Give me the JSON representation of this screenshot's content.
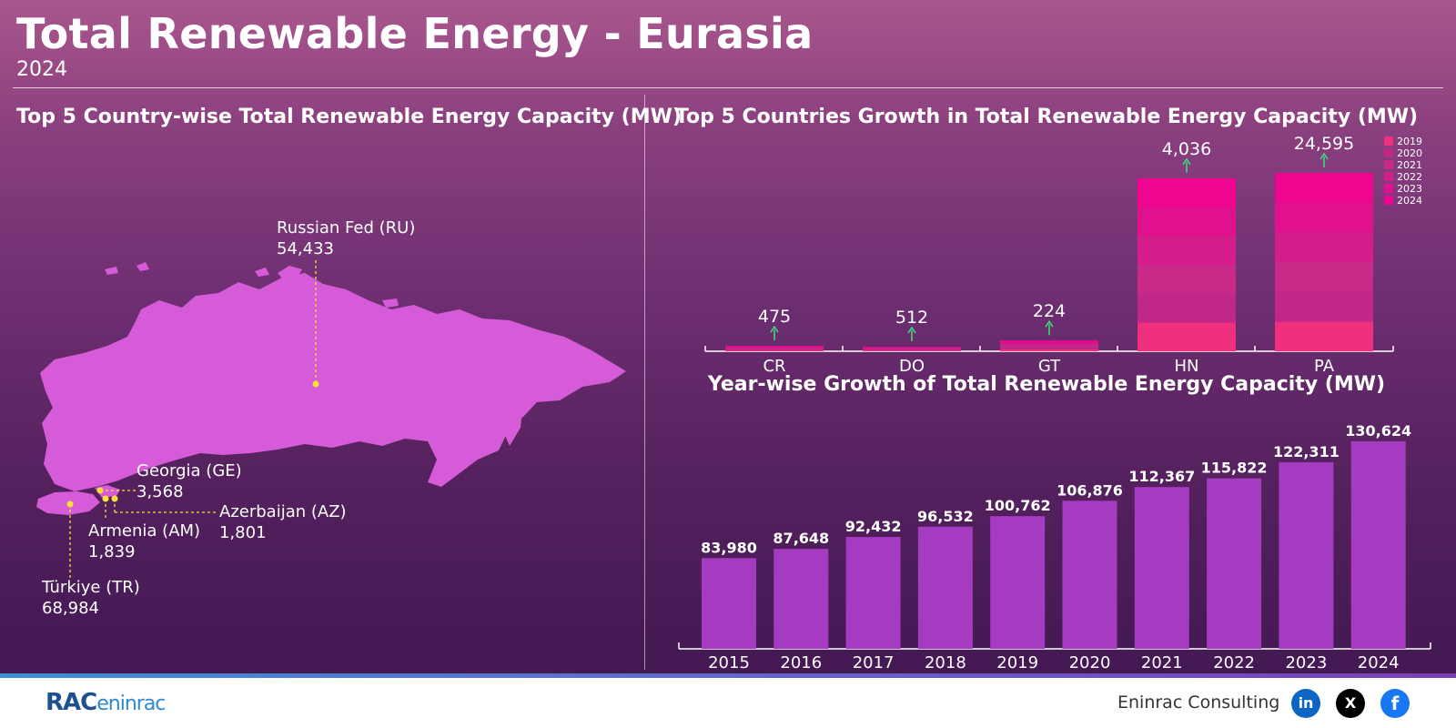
{
  "header": {
    "title": "Total Renewable Energy - Eurasia",
    "subtitle": "2024"
  },
  "map_panel": {
    "title": "Top 5 Country-wise Total Renewable Energy Capacity (MW)",
    "countries": [
      {
        "name": "Russian Fed (RU)",
        "value": "54,433"
      },
      {
        "name": "Georgia (GE)",
        "value": "3,568"
      },
      {
        "name": "Azerbaijan (AZ)",
        "value": "1,801"
      },
      {
        "name": "Armenia (AM)",
        "value": "1,839"
      },
      {
        "name": "Türkiye (TR)",
        "value": "68,984"
      }
    ],
    "marker_color": "#ffe135",
    "map_color": "#d45ad6"
  },
  "chart_data": [
    {
      "type": "bar",
      "stacked": true,
      "title": "Top 5 Countries Growth in Total Renewable Energy Capacity (MW)",
      "categories": [
        "CR",
        "DO",
        "GT",
        "HN",
        "PA"
      ],
      "growth_labels": [
        "475",
        "512",
        "224",
        "4,036",
        "24,595"
      ],
      "growth": [
        475,
        512,
        224,
        4036,
        24595
      ],
      "legend": [
        "2019",
        "2020",
        "2021",
        "2022",
        "2023",
        "2024"
      ],
      "legend_position": "top-right",
      "colors": [
        "#f0307e",
        "#c02788",
        "#c92a8a",
        "#d51d8c",
        "#e0108e",
        "#ee0590"
      ],
      "bar_heights_relative": [
        0.03,
        0.025,
        0.06,
        0.97,
        1.0
      ]
    },
    {
      "type": "bar",
      "title": "Year-wise Growth of Total Renewable Energy Capacity (MW)",
      "categories": [
        "2015",
        "2016",
        "2017",
        "2018",
        "2019",
        "2020",
        "2021",
        "2022",
        "2023",
        "2024"
      ],
      "values": [
        83980,
        87648,
        92432,
        96532,
        100762,
        106876,
        112367,
        115822,
        122311,
        130624
      ],
      "value_labels": [
        "83,980",
        "87,648",
        "92,432",
        "96,532",
        "100,762",
        "106,876",
        "112,367",
        "115,822",
        "122,311",
        "130,624"
      ],
      "bar_color": "#a53bc0",
      "ylim": [
        0,
        135000
      ]
    }
  ],
  "footer": {
    "logo_text": "RAC",
    "logo_sub": "eninrac",
    "company": "Eninrac Consulting",
    "social": [
      {
        "icon": "linkedin-icon",
        "glyph": "in"
      },
      {
        "icon": "x-icon",
        "glyph": "X"
      },
      {
        "icon": "facebook-icon",
        "glyph": "f"
      }
    ]
  }
}
